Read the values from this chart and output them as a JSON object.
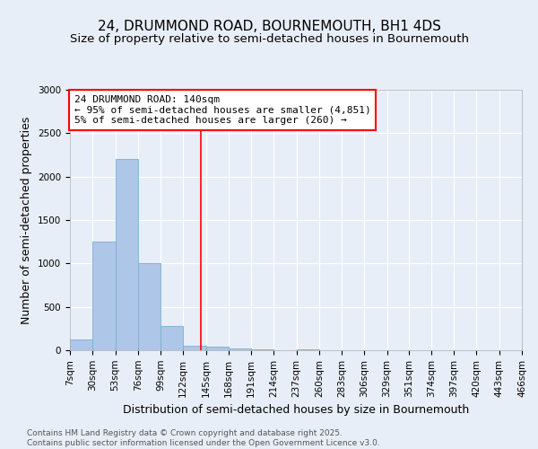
{
  "title": "24, DRUMMOND ROAD, BOURNEMOUTH, BH1 4DS",
  "subtitle": "Size of property relative to semi-detached houses in Bournemouth",
  "xlabel": "Distribution of semi-detached houses by size in Bournemouth",
  "ylabel": "Number of semi-detached properties",
  "footer_line1": "Contains HM Land Registry data © Crown copyright and database right 2025.",
  "footer_line2": "Contains public sector information licensed under the Open Government Licence v3.0.",
  "annotation_title": "24 DRUMMOND ROAD: 140sqm",
  "annotation_line2": "← 95% of semi-detached houses are smaller (4,851)",
  "annotation_line3": "5% of semi-detached houses are larger (260) →",
  "property_size": 140,
  "bin_edges": [
    7,
    30,
    53,
    76,
    99,
    122,
    145,
    168,
    191,
    214,
    237,
    260,
    283,
    306,
    329,
    351,
    374,
    397,
    420,
    443,
    466
  ],
  "bin_labels": [
    "7sqm",
    "30sqm",
    "53sqm",
    "76sqm",
    "99sqm",
    "122sqm",
    "145sqm",
    "168sqm",
    "191sqm",
    "214sqm",
    "237sqm",
    "260sqm",
    "283sqm",
    "306sqm",
    "329sqm",
    "351sqm",
    "374sqm",
    "397sqm",
    "420sqm",
    "443sqm",
    "466sqm"
  ],
  "counts": [
    120,
    1250,
    2200,
    1000,
    275,
    50,
    40,
    20,
    10,
    0,
    10,
    0,
    0,
    0,
    0,
    0,
    0,
    0,
    0,
    0
  ],
  "bar_color": "#aec6e8",
  "bar_edge_color": "#7aafd4",
  "vline_color": "red",
  "vline_x": 140,
  "background_color": "#e8eef8",
  "box_color": "white",
  "box_edge_color": "red",
  "ylim": [
    0,
    3000
  ],
  "yticks": [
    0,
    500,
    1000,
    1500,
    2000,
    2500,
    3000
  ],
  "title_fontsize": 11,
  "subtitle_fontsize": 9.5,
  "axis_label_fontsize": 9,
  "tick_fontsize": 7.5,
  "annotation_fontsize": 8,
  "footer_fontsize": 6.5
}
